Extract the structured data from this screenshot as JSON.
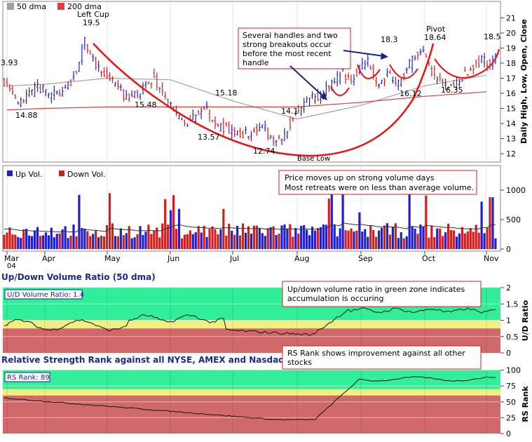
{
  "colors": {
    "up": "#1f1fd0",
    "down": "#d01f1f",
    "ma50": "#a0a0a0",
    "ma200": "#e04040",
    "cup": "#ee1111",
    "green_zone": "#33ee99",
    "yellow_zone": "#f0f080",
    "red_zone": "#d06a6a",
    "section_title": "#1a2a88"
  },
  "price_panel": {
    "legend": [
      {
        "label": "50 dma",
        "color": "#a0a0a0"
      },
      {
        "label": "200 dma",
        "color": "#e04040"
      }
    ],
    "y_axis_title": "Daily High, Low, Open, Close",
    "y_ticks": [
      "12",
      "13",
      "14",
      "15",
      "16",
      "17",
      "18",
      "19",
      "20",
      "21"
    ],
    "labels": [
      {
        "text": "3.93"
      },
      {
        "text": "19.5"
      },
      {
        "text": "Left Cup"
      },
      {
        "text": "14.88"
      },
      {
        "text": "15.48"
      },
      {
        "text": "15.18"
      },
      {
        "text": "13.57"
      },
      {
        "text": "14.1"
      },
      {
        "text": "12.74"
      },
      {
        "text": "Base Low"
      },
      {
        "text": "18.3"
      },
      {
        "text": "Pivot"
      },
      {
        "text": "18.64"
      },
      {
        "text": "16.12"
      },
      {
        "text": "16.35"
      },
      {
        "text": "18.5"
      }
    ],
    "annotation": "Several handles and two strong breakouts occur before the most recent handle",
    "annotation_lines": [
      "Several handles and two",
      "strong breakouts occur",
      "before the most recent",
      "handle"
    ]
  },
  "volume_panel": {
    "legend": [
      {
        "label": "Up Vol.",
        "color": "#1f1fd0"
      },
      {
        "label": "Down Vol.",
        "color": "#d01f1f"
      }
    ],
    "y_ticks": [
      "0",
      "500",
      "1000"
    ],
    "annotation_lines": [
      "Price moves up on strong volume days",
      "Most retreats were on less than average volume."
    ]
  },
  "x_axis": {
    "months": [
      "Mar",
      "Apr",
      "May",
      "Jun",
      "Jul",
      "Aug",
      "Sep",
      "Oct",
      "Nov"
    ],
    "year": "04"
  },
  "ud_panel": {
    "title": "Up/Down Volume Ratio (50 dma)",
    "box_label": "U/D Volume Ratio: 1.4",
    "y_axis_title": "U/D Ratio",
    "y_ticks": [
      "0",
      "0.5",
      "1",
      "1.5",
      "2"
    ],
    "annotation_lines": [
      "Up/down volume ratio in green zone indicates",
      "accumulation is occuring"
    ]
  },
  "rs_panel": {
    "title": "Relative Strength Rank against all NYSE, AMEX and Nasdaq stocks",
    "box_label": "RS Rank: 89",
    "y_axis_title": "RS Rank",
    "y_ticks": [
      "0",
      "25",
      "50",
      "75",
      "100"
    ],
    "annotation_lines": [
      "RS Rank shows improvement against all other",
      "stocks"
    ]
  },
  "chart_data": [
    {
      "type": "line",
      "title": "",
      "ylabel": "Daily High, Low, Open, Close",
      "ylim": [
        12,
        21
      ],
      "series": [
        {
          "name": "50 dma",
          "points": [
            [
              "Mar",
              16.5
            ],
            [
              "Apr",
              16.6
            ],
            [
              "May",
              17.0
            ],
            [
              "Jun",
              16.9
            ],
            [
              "Jul",
              15.5
            ],
            [
              "Aug",
              14.3
            ],
            [
              "Sep",
              15.2
            ],
            [
              "Oct",
              16.5
            ],
            [
              "Nov",
              17.2
            ]
          ]
        },
        {
          "name": "200 dma",
          "points": [
            [
              "Mar",
              14.9
            ],
            [
              "Apr",
              15.0
            ],
            [
              "May",
              15.1
            ],
            [
              "Jun",
              15.1
            ],
            [
              "Jul",
              15.1
            ],
            [
              "Aug",
              15.1
            ],
            [
              "Sep",
              15.4
            ],
            [
              "Oct",
              15.8
            ],
            [
              "Nov",
              16.1
            ]
          ]
        }
      ],
      "labeled_prices": [
        {
          "label": "19.5",
          "note": "Left Cup"
        },
        {
          "label": "14.88"
        },
        {
          "label": "15.48"
        },
        {
          "label": "15.18"
        },
        {
          "label": "13.57"
        },
        {
          "label": "14.1"
        },
        {
          "label": "12.74",
          "note": "Base Low"
        },
        {
          "label": "18.3"
        },
        {
          "label": "18.64",
          "note": "Pivot"
        },
        {
          "label": "16.12"
        },
        {
          "label": "16.35"
        },
        {
          "label": "18.5"
        }
      ]
    },
    {
      "type": "bar",
      "title": "",
      "series": [
        {
          "name": "Up Vol."
        },
        {
          "name": "Down Vol."
        }
      ],
      "ylim": [
        0,
        1000
      ],
      "approx_average_volume": 320,
      "approx_peak_volume": 1150
    },
    {
      "type": "line",
      "title": "Up/Down Volume Ratio (50 dma)",
      "ylabel": "U/D Ratio",
      "ylim": [
        0,
        2
      ],
      "latest": 1.4,
      "zones": {
        "red": [
          0,
          0.75
        ],
        "yellow": [
          0.75,
          1.0
        ],
        "green": [
          1.0,
          2.0
        ]
      },
      "points": [
        [
          "Mar",
          0.85
        ],
        [
          "Apr",
          0.9
        ],
        [
          "May",
          1.1
        ],
        [
          "Jun",
          1.0
        ],
        [
          "Jul",
          0.65
        ],
        [
          "Aug",
          0.55
        ],
        [
          "Sep",
          1.35
        ],
        [
          "Oct",
          1.3
        ],
        [
          "Nov",
          1.4
        ]
      ]
    },
    {
      "type": "line",
      "title": "Relative Strength Rank against all NYSE, AMEX and Nasdaq stocks",
      "ylabel": "RS Rank",
      "ylim": [
        0,
        100
      ],
      "latest": 89,
      "zones": {
        "red": [
          0,
          60
        ],
        "yellow": [
          60,
          70
        ],
        "green": [
          70,
          100
        ]
      },
      "points": [
        [
          "Mar",
          56
        ],
        [
          "Apr",
          53
        ],
        [
          "May",
          47
        ],
        [
          "Jun",
          40
        ],
        [
          "Jul",
          30
        ],
        [
          "Aug",
          22
        ],
        [
          "Sep",
          83
        ],
        [
          "Oct",
          88
        ],
        [
          "Nov",
          89
        ]
      ]
    }
  ]
}
